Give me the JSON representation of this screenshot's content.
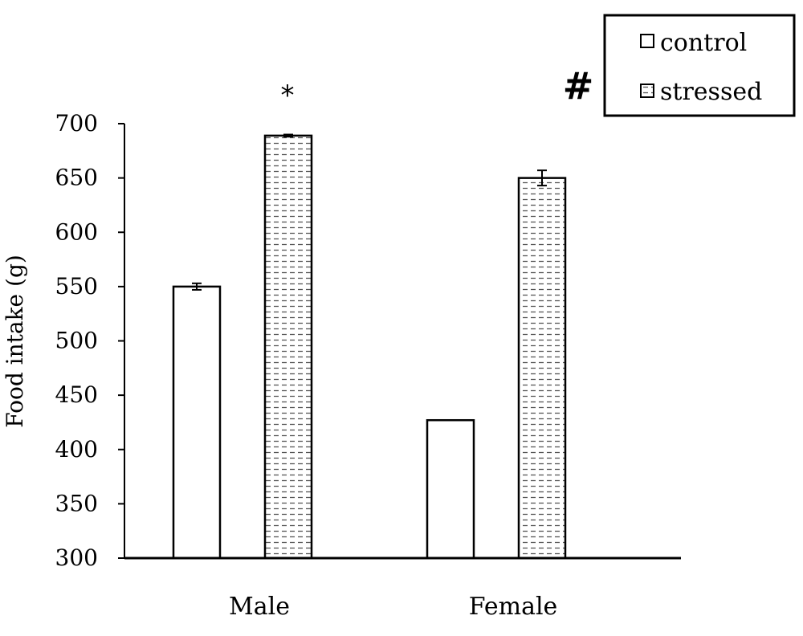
{
  "chart_data": {
    "type": "bar",
    "title": "",
    "xlabel": "",
    "ylabel": "Food intake (g)",
    "ylim": [
      300,
      700
    ],
    "yticks": [
      300,
      350,
      400,
      450,
      500,
      550,
      600,
      650,
      700
    ],
    "categories": [
      "Male",
      "Female"
    ],
    "series": [
      {
        "name": "control",
        "values": [
          550,
          427
        ],
        "errors": [
          3,
          0
        ],
        "fill": "plain"
      },
      {
        "name": "stressed",
        "values": [
          689,
          650
        ],
        "errors": [
          1,
          7
        ],
        "fill": "dashed"
      }
    ],
    "annotations": [
      "*",
      "#"
    ],
    "legend": {
      "placement": "top-right"
    },
    "grid": false,
    "colors": {
      "bar_fill": "#ffffff",
      "stroke": "#000000",
      "pattern": "#555555"
    }
  }
}
